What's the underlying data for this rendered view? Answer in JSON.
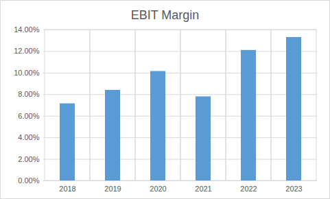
{
  "chart_data": {
    "type": "bar",
    "title": "EBIT Margin",
    "categories": [
      "2018",
      "2019",
      "2020",
      "2021",
      "2022",
      "2023"
    ],
    "values": [
      7.15,
      8.4,
      10.15,
      7.8,
      12.1,
      13.3
    ],
    "color": "#5b9bd5",
    "ylim": [
      0,
      14
    ],
    "yticks": [
      {
        "value": 0,
        "label": "0.00%"
      },
      {
        "value": 2,
        "label": "2.00%"
      },
      {
        "value": 4,
        "label": "4.00%"
      },
      {
        "value": 6,
        "label": "6.00%"
      },
      {
        "value": 8,
        "label": "8.00%"
      },
      {
        "value": 10,
        "label": "10.00%"
      },
      {
        "value": 12,
        "label": "12.00%"
      },
      {
        "value": 14,
        "label": "14.00%"
      }
    ],
    "grid": true
  }
}
